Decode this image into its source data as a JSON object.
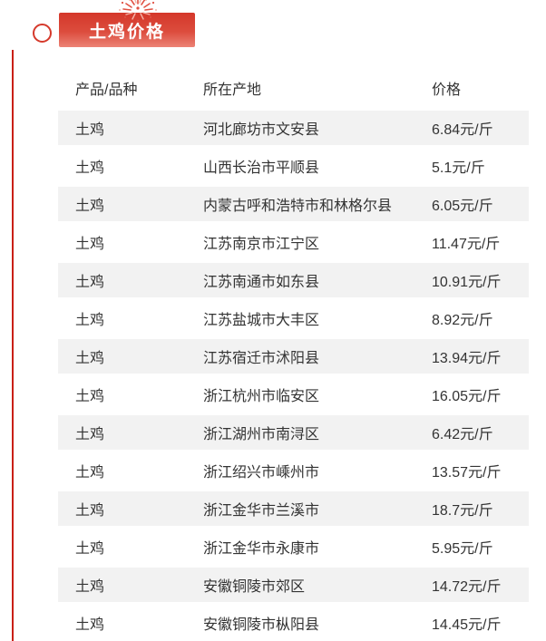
{
  "header": {
    "badge_label": "土鸡价格",
    "decoration_icon": "firework-burst-icon",
    "marker_icon": "circle-outline-icon"
  },
  "table": {
    "columns": [
      "产品/品种",
      "所在产地",
      "价格"
    ],
    "rows": [
      [
        "土鸡",
        "河北廊坊市文安县",
        "6.84元/斤"
      ],
      [
        "土鸡",
        "山西长治市平顺县",
        "5.1元/斤"
      ],
      [
        "土鸡",
        "内蒙古呼和浩特市和林格尔县",
        "6.05元/斤"
      ],
      [
        "土鸡",
        "江苏南京市江宁区",
        "11.47元/斤"
      ],
      [
        "土鸡",
        "江苏南通市如东县",
        "10.91元/斤"
      ],
      [
        "土鸡",
        "江苏盐城市大丰区",
        "8.92元/斤"
      ],
      [
        "土鸡",
        "江苏宿迁市沭阳县",
        "13.94元/斤"
      ],
      [
        "土鸡",
        "浙江杭州市临安区",
        "16.05元/斤"
      ],
      [
        "土鸡",
        "浙江湖州市南浔区",
        "6.42元/斤"
      ],
      [
        "土鸡",
        "浙江绍兴市嵊州市",
        "13.57元/斤"
      ],
      [
        "土鸡",
        "浙江金华市兰溪市",
        "18.7元/斤"
      ],
      [
        "土鸡",
        "浙江金华市永康市",
        "5.95元/斤"
      ],
      [
        "土鸡",
        "安徽铜陵市郊区",
        "14.72元/斤"
      ],
      [
        "土鸡",
        "安徽铜陵市枞阳县",
        "14.45元/斤"
      ]
    ]
  },
  "colors": {
    "badge_red_top": "#d4372a",
    "badge_red_bottom": "#ec8376",
    "accent_line_red": "#c92015",
    "stripe_gray": "#f2f2f2",
    "text": "#333333"
  }
}
